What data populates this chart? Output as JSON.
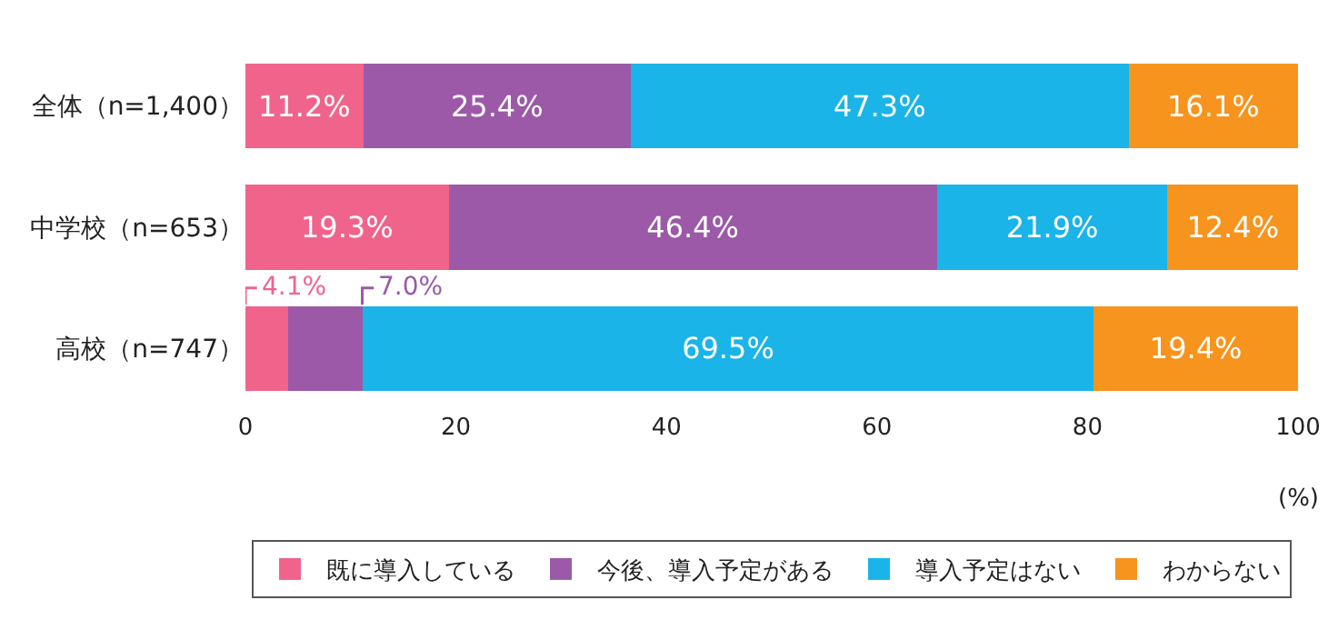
{
  "chart_data": {
    "type": "bar",
    "orientation": "horizontal",
    "stacked": true,
    "xlabel": "(%)",
    "categories": [
      "全体（n=1,400）",
      "中学校（n=653）",
      "高校（n=747）"
    ],
    "xlim": [
      0,
      100
    ],
    "xticks": [
      0,
      20,
      40,
      60,
      80,
      100
    ],
    "grid": false,
    "legend": "bottom",
    "series": [
      {
        "name": "既に導入している",
        "color": "#f0648c",
        "values": [
          11.2,
          19.3,
          4.1
        ],
        "value_labels": [
          "11.2%",
          "19.3%",
          "4.1%"
        ]
      },
      {
        "name": "今後、導入予定がある",
        "color": "#9b59a8",
        "values": [
          25.4,
          46.4,
          7.0
        ],
        "value_labels": [
          "25.4%",
          "46.4%",
          "7.0%"
        ]
      },
      {
        "name": "導入予定はない",
        "color": "#1ab4e8",
        "values": [
          47.3,
          21.9,
          69.5
        ],
        "value_labels": [
          "47.3%",
          "21.9%",
          "69.5%"
        ]
      },
      {
        "name": "わからない",
        "color": "#f7941d",
        "values": [
          16.1,
          12.4,
          19.4
        ],
        "value_labels": [
          "16.1%",
          "12.4%",
          "19.4%"
        ]
      }
    ]
  }
}
